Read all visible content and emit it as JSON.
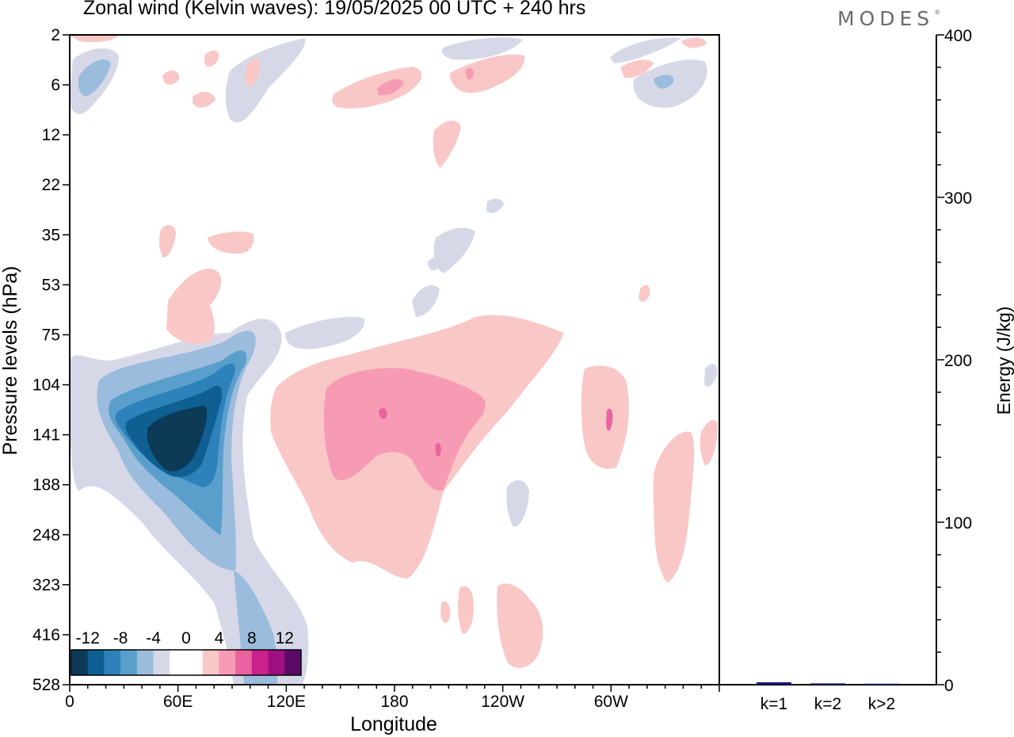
{
  "header": {
    "title": "Zonal wind (Kelvin waves):  19/05/2025  00 UTC  + 240 hrs",
    "brand": "MODES",
    "brand_mark": "®"
  },
  "chart_data": [
    {
      "type": "heatmap",
      "title": "Zonal wind (Kelvin waves):  19/05/2025  00 UTC  + 240 hrs",
      "xlabel": "Longitude",
      "ylabel": "Pressure levels (hPa)",
      "x_ticks": [
        "0",
        "60E",
        "120E",
        "180",
        "120W",
        "60W"
      ],
      "x_tick_degrees": [
        0,
        60,
        120,
        180,
        240,
        300
      ],
      "xlim_degrees": [
        0,
        360
      ],
      "y_ticks": [
        "2",
        "6",
        "12",
        "22",
        "35",
        "53",
        "75",
        "104",
        "141",
        "188",
        "248",
        "323",
        "416",
        "528"
      ],
      "y_scale": "pressure levels (top to bottom, evenly spaced)",
      "colorbar": {
        "tick_labels": [
          "-12",
          "-8",
          "-4",
          "0",
          "4",
          "8",
          "12"
        ],
        "colors": [
          "#0d3a57",
          "#0f5f93",
          "#2e82ba",
          "#5a9fcc",
          "#9bbcdc",
          "#d6d8e8",
          "#ffffff",
          "#ffffff",
          "#f9c8c6",
          "#f79bb4",
          "#ea63a0",
          "#c9228a",
          "#9e0f7f",
          "#5a0a66"
        ],
        "location": "bottom-left"
      },
      "features": [
        {
          "sign": "negative",
          "peak_ms": -14,
          "lon_deg": [
            40,
            90
          ],
          "pressure_hPa": [
            104,
            188
          ],
          "note": "strong easterly core"
        },
        {
          "sign": "negative",
          "peak_ms": -4,
          "lon_deg": [
            0,
            130
          ],
          "pressure_hPa": [
            75,
            528
          ]
        },
        {
          "sign": "positive",
          "peak_ms": 8,
          "lon_deg": [
            145,
            250
          ],
          "pressure_hPa": [
            75,
            323
          ]
        },
        {
          "sign": "positive",
          "peak_ms": 4,
          "lon_deg": [
            285,
            310
          ],
          "pressure_hPa": [
            104,
            188
          ]
        },
        {
          "sign": "positive",
          "peak_ms": 2,
          "lon_deg": [
            325,
            360
          ],
          "pressure_hPa": [
            141,
            323
          ]
        },
        {
          "sign": "positive",
          "peak_ms": 2,
          "lon_deg": [
            235,
            260
          ],
          "pressure_hPa": [
            323,
            528
          ]
        },
        {
          "sign": "positive",
          "peak_ms": 2,
          "lon_deg": [
            50,
            90
          ],
          "pressure_hPa": [
            53,
            75
          ]
        },
        {
          "sign": "positive",
          "peak_ms": 4,
          "lon_deg": [
            145,
            200
          ],
          "pressure_hPa": [
            2,
            12
          ]
        },
        {
          "sign": "negative",
          "peak_ms": -4,
          "lon_deg": [
            0,
            40
          ],
          "pressure_hPa": [
            2,
            12
          ]
        },
        {
          "sign": "negative",
          "peak_ms": -4,
          "lon_deg": [
            310,
            360
          ],
          "pressure_hPa": [
            2,
            12
          ]
        }
      ]
    },
    {
      "type": "bar",
      "ylabel": "Energy (J/kg)",
      "categories": [
        "k=1",
        "k=2",
        "k>2"
      ],
      "values": [
        1.5,
        0.8,
        0.6
      ],
      "ylim": [
        0,
        400
      ],
      "y_ticks": [
        "0",
        "100",
        "200",
        "300",
        "400"
      ],
      "bar_color": "#141478"
    }
  ]
}
